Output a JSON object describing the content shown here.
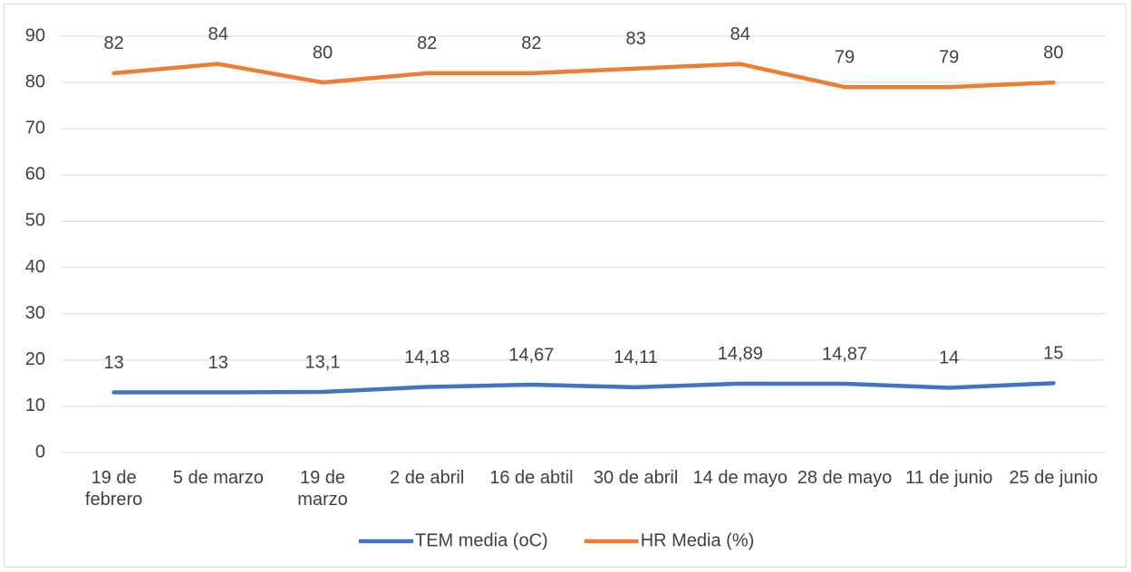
{
  "chart_data": {
    "type": "line",
    "categories": [
      "19 de febrero",
      "5 de marzo",
      "19 de marzo",
      "2 de abril",
      "16 de abtil",
      "30 de abril",
      "14 de mayo",
      "28 de mayo",
      "11 de junio",
      "25 de junio"
    ],
    "series": [
      {
        "name": "TEM media (oC)",
        "color": "#4472c4",
        "values": [
          13,
          13,
          13.1,
          14.18,
          14.67,
          14.11,
          14.89,
          14.87,
          14,
          15
        ],
        "value_labels": [
          "13",
          "13",
          "13,1",
          "14,18",
          "14,67",
          "14,11",
          "14,89",
          "14,87",
          "14",
          "15"
        ]
      },
      {
        "name": "HR Media (%)",
        "color": "#ed7d31",
        "values": [
          82,
          84,
          80,
          82,
          82,
          83,
          84,
          79,
          79,
          80
        ]
      }
    ],
    "ylim": [
      0,
      90
    ],
    "yticks": [
      0,
      10,
      20,
      30,
      40,
      50,
      60,
      70,
      80,
      90
    ],
    "grid": true,
    "legend": "bottom"
  }
}
